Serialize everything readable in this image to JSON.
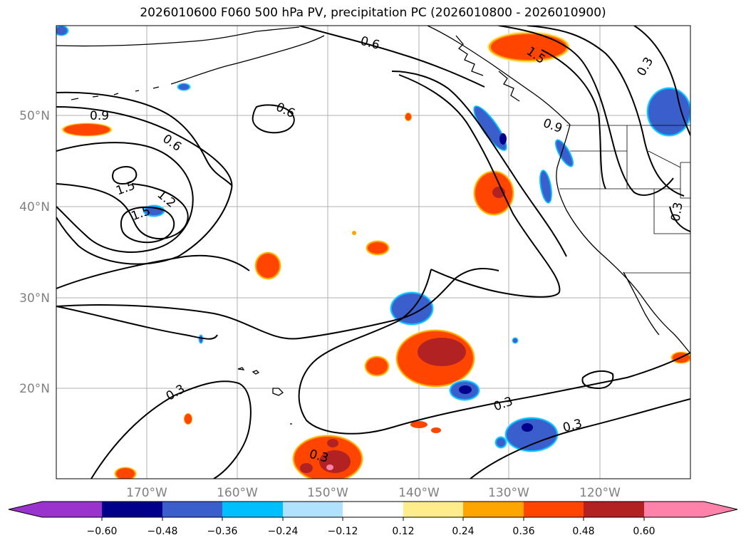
{
  "title": "2026010600 F060 500 hPa PV, precipitation PC (2026010800 - 2026010900)",
  "map": {
    "lat_labels": [
      "50°N",
      "40°N",
      "30°N",
      "20°N"
    ],
    "lon_labels": [
      "170°W",
      "160°W",
      "150°W",
      "140°W",
      "130°W",
      "120°W"
    ],
    "contour_labels": [
      "0.6",
      "0.6",
      "0.9",
      "0.6",
      "1.5",
      "1.2",
      "1.5",
      "1.5",
      "0.9",
      "0.3",
      "0.3",
      "0.3",
      "0.3",
      "0.3",
      "0.3"
    ]
  },
  "colorbar": {
    "ticks": [
      "−0.60",
      "−0.48",
      "−0.36",
      "−0.24",
      "−0.12",
      "0.12",
      "0.24",
      "0.36",
      "0.48",
      "0.60"
    ],
    "colors": [
      "#9a32cd",
      "#00008b",
      "#3a5fcd",
      "#00bfff",
      "#b0e2ff",
      "#ffffff",
      "#ffec8b",
      "#ffa500",
      "#ff4500",
      "#b22222",
      "#ff82ab"
    ]
  }
}
